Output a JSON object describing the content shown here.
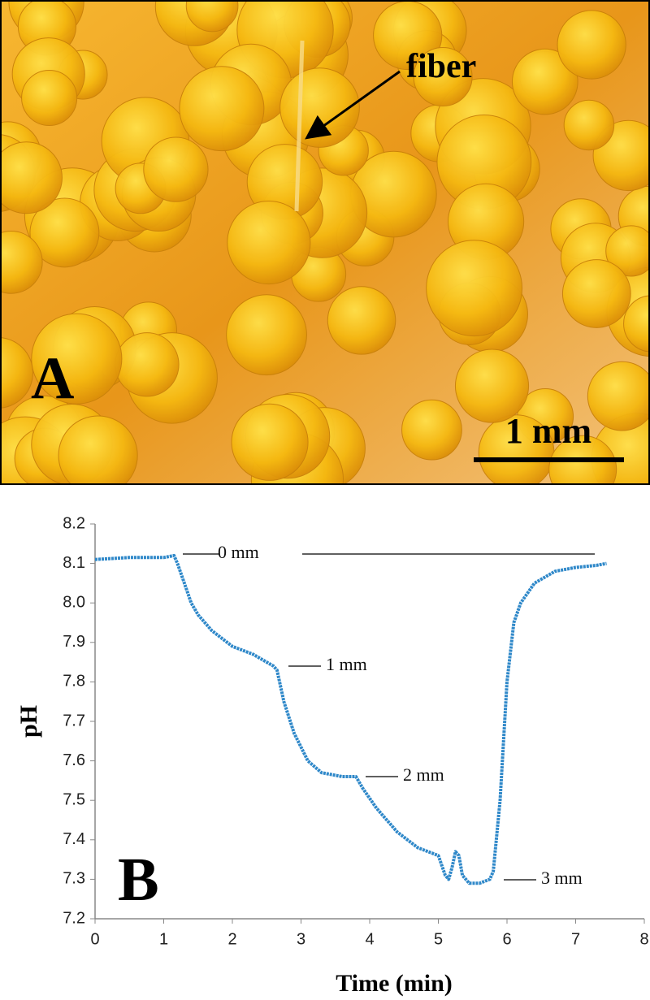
{
  "panel_a": {
    "label": "A",
    "annotation": "fiber",
    "scale_bar": "1 mm"
  },
  "chart_data": {
    "type": "line",
    "panel_label": "B",
    "x_label": "Time (min)",
    "y_label": "pH",
    "annotations": [
      "0 mm",
      "1 mm",
      "2 mm",
      "3 mm"
    ],
    "xlim": [
      0,
      8
    ],
    "xticks": [
      0,
      1,
      2,
      3,
      4,
      5,
      6,
      7,
      8
    ],
    "ylim": [
      7.2,
      8.2
    ],
    "yticks": [
      7.2,
      7.3,
      7.4,
      7.5,
      7.6,
      7.7,
      7.8,
      7.9,
      {
        "value": 8,
        "label": "8.0"
      },
      8.1,
      8.2
    ],
    "series": [
      {
        "color": "#2f88c9",
        "x": [
          0,
          0.5,
          1.0,
          1.15,
          1.2,
          1.3,
          1.4,
          1.5,
          1.7,
          2.0,
          2.3,
          2.6,
          2.65,
          2.75,
          2.9,
          3.1,
          3.3,
          3.6,
          3.8,
          3.9,
          4.1,
          4.4,
          4.7,
          5.0,
          5.1,
          5.15,
          5.2,
          5.25,
          5.3,
          5.35,
          5.45,
          5.6,
          5.75,
          5.8,
          5.9,
          6.0,
          6.1,
          6.2,
          6.4,
          6.7,
          7.0,
          7.3,
          7.45
        ],
        "values": [
          8.11,
          8.115,
          8.115,
          8.12,
          8.1,
          8.05,
          8.0,
          7.97,
          7.93,
          7.89,
          7.87,
          7.84,
          7.83,
          7.75,
          7.67,
          7.6,
          7.57,
          7.56,
          7.56,
          7.53,
          7.48,
          7.42,
          7.38,
          7.36,
          7.31,
          7.3,
          7.33,
          7.37,
          7.36,
          7.31,
          7.29,
          7.29,
          7.3,
          7.32,
          7.5,
          7.8,
          7.95,
          8.0,
          8.05,
          8.08,
          8.09,
          8.095,
          8.1
        ]
      }
    ]
  }
}
